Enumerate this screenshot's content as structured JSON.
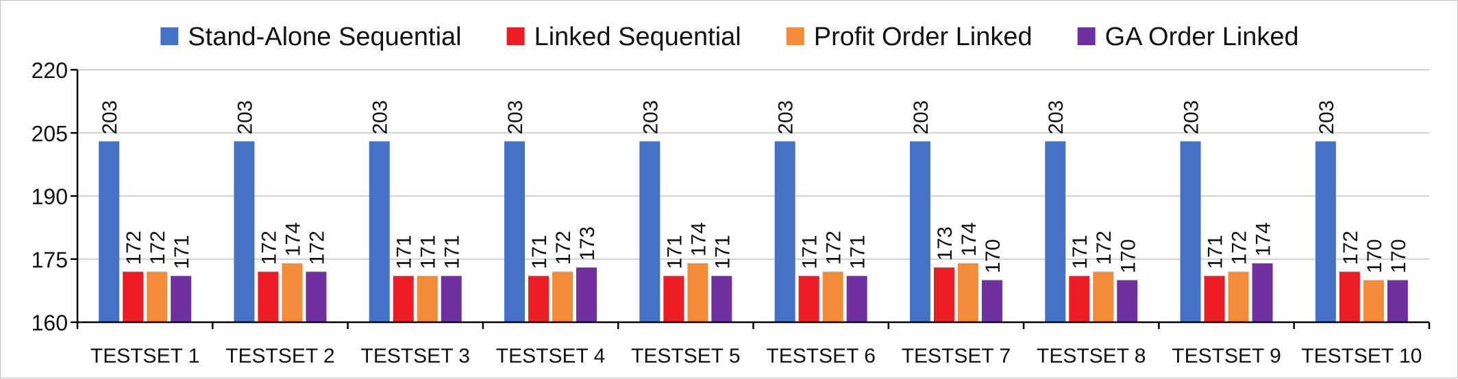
{
  "chart_data": {
    "type": "bar",
    "categories": [
      "TESTSET 1",
      "TESTSET 2",
      "TESTSET 3",
      "TESTSET 4",
      "TESTSET 5",
      "TESTSET 6",
      "TESTSET 7",
      "TESTSET 8",
      "TESTSET 9",
      "TESTSET 10"
    ],
    "series": [
      {
        "name": "Stand-Alone Sequential",
        "color": "#4472C4",
        "values": [
          203,
          203,
          203,
          203,
          203,
          203,
          203,
          203,
          203,
          203
        ]
      },
      {
        "name": "Linked Sequential",
        "color": "#EE1C25",
        "values": [
          172,
          172,
          171,
          171,
          171,
          171,
          173,
          171,
          171,
          172
        ]
      },
      {
        "name": "Profit Order Linked",
        "color": "#F28C38",
        "values": [
          172,
          174,
          171,
          172,
          174,
          172,
          174,
          172,
          172,
          170
        ]
      },
      {
        "name": "GA Order Linked",
        "color": "#7030A0",
        "values": [
          171,
          172,
          171,
          173,
          171,
          171,
          170,
          170,
          174,
          170
        ]
      }
    ],
    "y_ticks": [
      "220",
      "205",
      "190",
      "175",
      "160"
    ],
    "ylim": [
      160,
      220
    ],
    "grid": true,
    "legend_position": "top",
    "title": "",
    "xlabel": "",
    "ylabel": ""
  }
}
